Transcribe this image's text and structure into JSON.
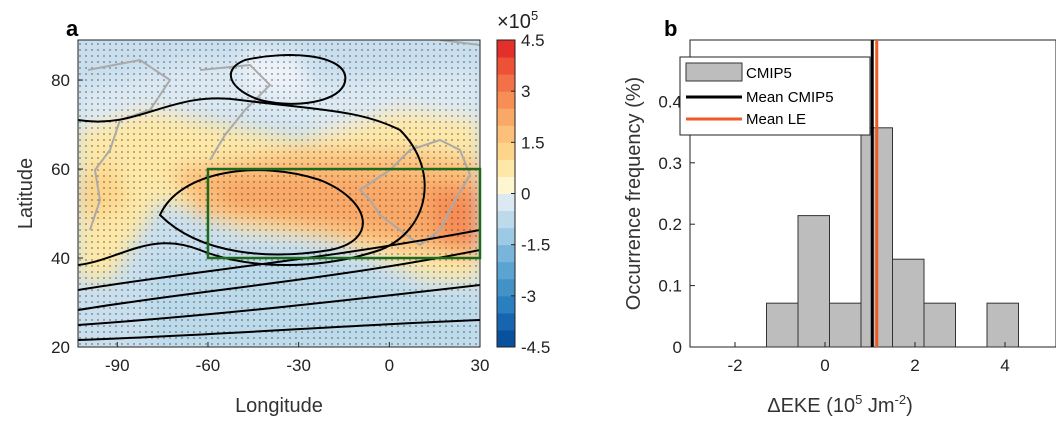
{
  "chart_data": [
    {
      "type": "map",
      "panel_label": "a",
      "xlabel": "Longitude",
      "ylabel": "Latitude",
      "xlim": [
        -103,
        30
      ],
      "xticks": [
        -90,
        -60,
        -30,
        0,
        30
      ],
      "ylim": [
        20,
        89
      ],
      "yticks": [
        20,
        40,
        60,
        80
      ],
      "box": {
        "x": [
          -60,
          30
        ],
        "y": [
          40,
          60
        ],
        "color": "#1e6b1e"
      },
      "colorbar": {
        "lim": [
          -4.5,
          4.5
        ],
        "ticks": [
          -4.5,
          -3,
          -1.5,
          0,
          1.5,
          3,
          4.5
        ],
        "scale_label": [
          "×10",
          "5"
        ],
        "colors": [
          "#08519c",
          "#1765b0",
          "#2a7fc0",
          "#4292c6",
          "#5ba3d0",
          "#79b5da",
          "#9ccae4",
          "#bcdaea",
          "#dce9f3",
          "#fdf6d0",
          "#fde8a8",
          "#fdd58a",
          "#fcc07a",
          "#f9a868",
          "#f68e56",
          "#f27146",
          "#ed5237",
          "#e3302d"
        ]
      }
    },
    {
      "type": "histogram",
      "panel_label": "b",
      "xlabel": [
        "ΔEKE (10",
        "5",
        " Jm",
        "-2",
        ")"
      ],
      "ylabel": "Occurrence frequency (%)",
      "bins": [
        -1.3,
        -0.6,
        0.1,
        0.8,
        1.5,
        2.2,
        2.9,
        3.6,
        4.3
      ],
      "values": [
        0.0714,
        0.214,
        0.0714,
        0.357,
        0.143,
        0.0714,
        0,
        0.0714
      ],
      "name": "CMIP5",
      "color": "#bdbdbd",
      "lines": [
        {
          "name": "Mean CMIP5",
          "value": 1.05,
          "color": "#000000"
        },
        {
          "name": "Mean LE",
          "value": 1.15,
          "color": "#ee5a24"
        }
      ],
      "xlim": [
        -3,
        5
      ],
      "xticks": [
        -2,
        0,
        2,
        4
      ],
      "ylim": [
        0,
        0.5
      ],
      "yticks": [
        0,
        0.1,
        0.2,
        0.3,
        0.4
      ],
      "legend": "upper left"
    }
  ]
}
